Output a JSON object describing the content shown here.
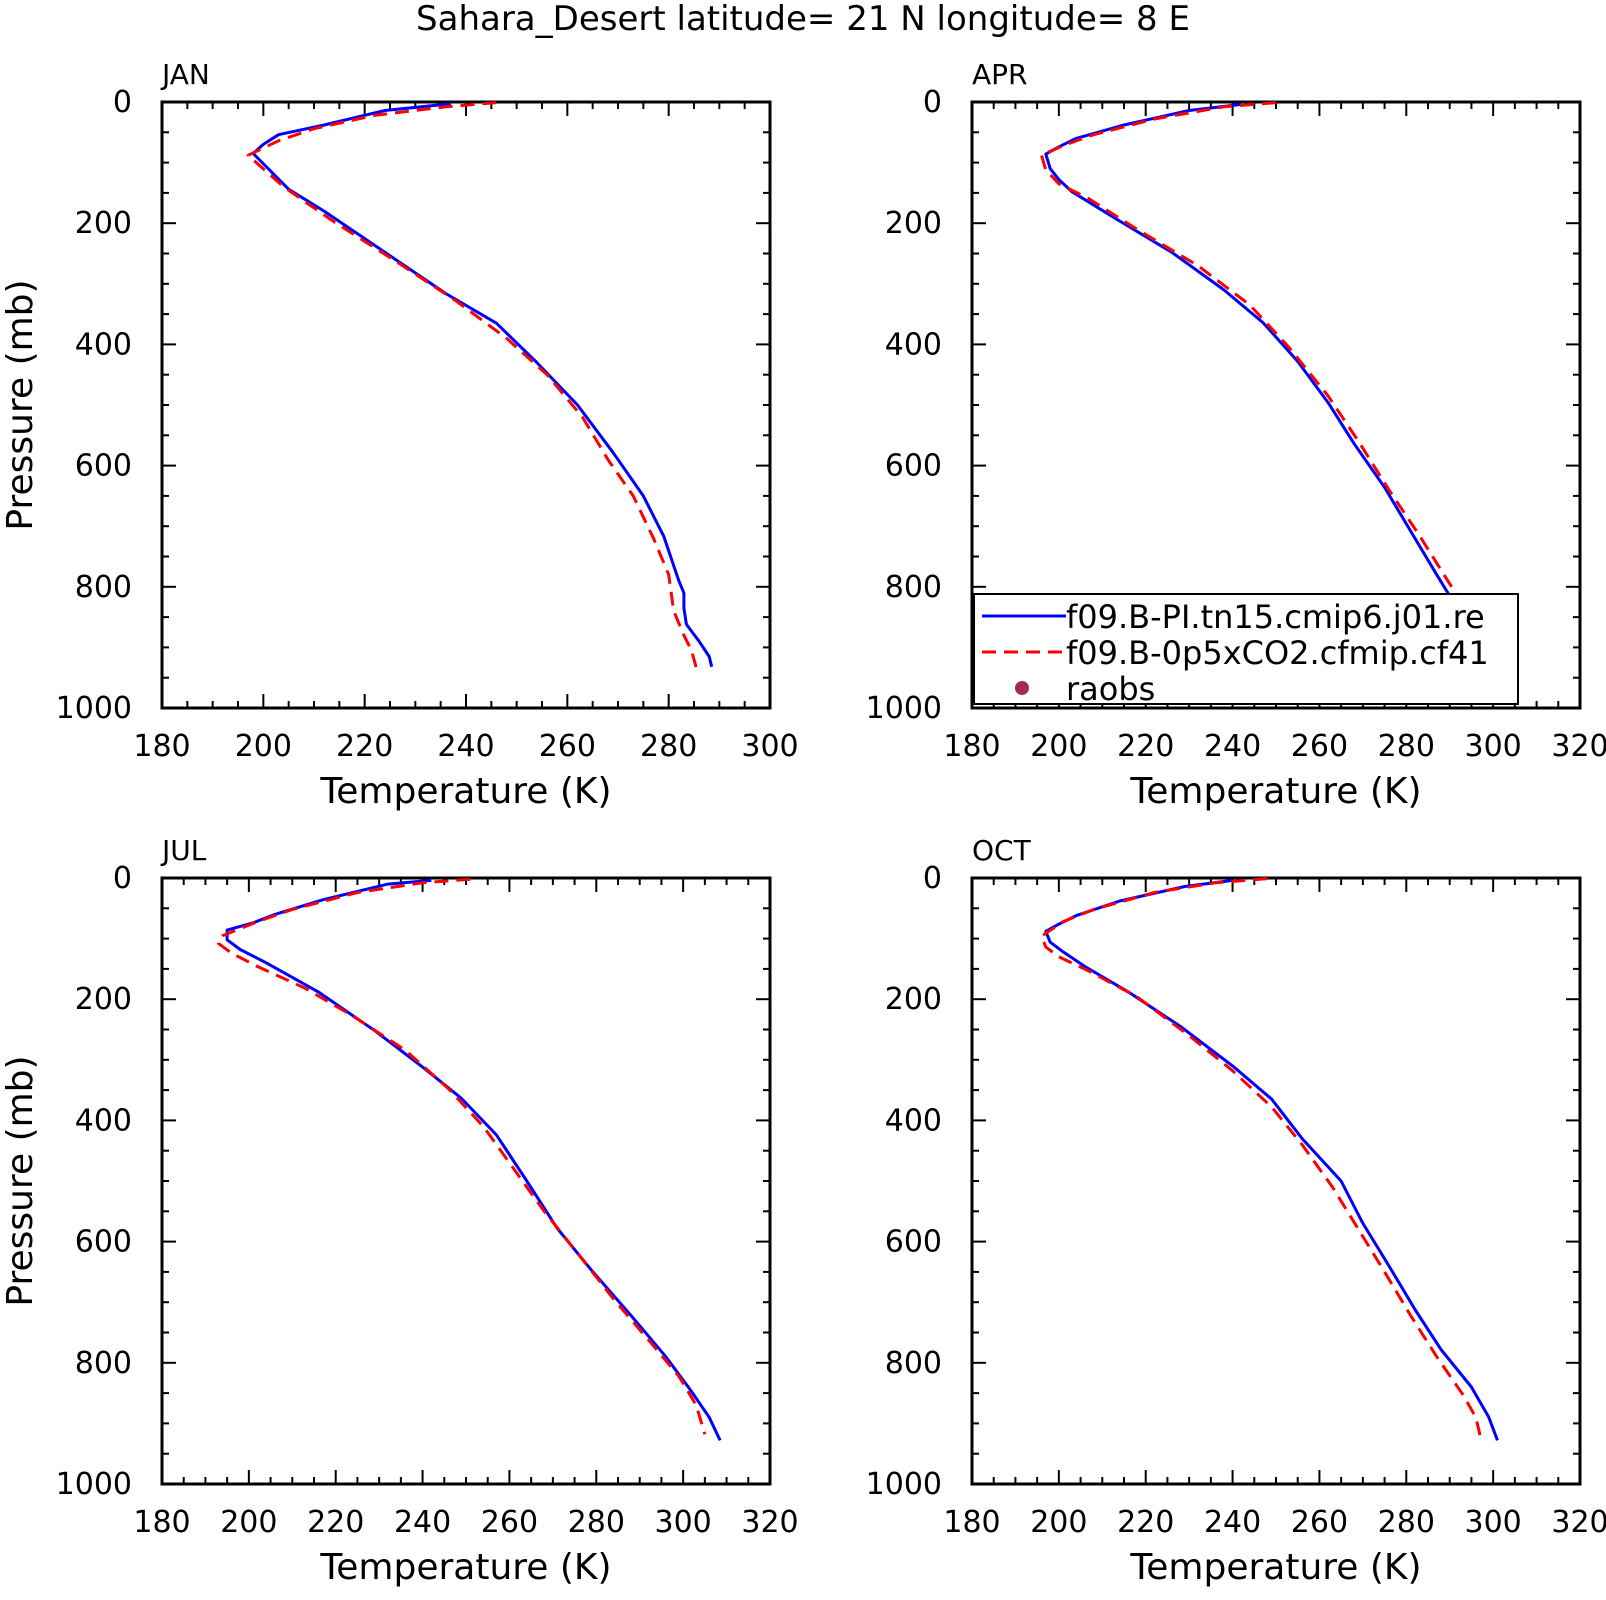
{
  "title": "Sahara_Desert  latitude= 21 N longitude= 8 E",
  "colors": {
    "ctrl": "#0000ff",
    "exp": "#ff0000",
    "raobs": "#a8285e",
    "axis": "#000000"
  },
  "legend": {
    "entries": [
      {
        "label": "f09.B-PI.tn15.cmip6.j01.re",
        "style": "solid",
        "color": "#0000ff"
      },
      {
        "label": "f09.B-0p5xCO2.cfmip.cf41",
        "style": "dashed",
        "color": "#ff0000"
      },
      {
        "label": "raobs",
        "style": "dot",
        "color": "#a8285e"
      }
    ],
    "placement": "inside APR panel, bottom"
  },
  "chart_data": [
    {
      "type": "line",
      "panel_label": "JAN",
      "xlabel": "Temperature (K)",
      "ylabel": "Pressure (mb)",
      "xlim": [
        180,
        300
      ],
      "ylim": [
        1000,
        0
      ],
      "xticks": [
        180,
        200,
        220,
        240,
        260,
        280,
        300
      ],
      "yticks": [
        0,
        200,
        400,
        600,
        800,
        1000
      ],
      "series": [
        {
          "name": "f09.B-PI.tn15.cmip6.j01.re",
          "color": "#0000ff",
          "dash": "solid",
          "points": [
            [
              237,
              3
            ],
            [
              224,
              14
            ],
            [
              212,
              38
            ],
            [
              203,
              54
            ],
            [
              200,
              70
            ],
            [
              198,
              85
            ],
            [
              205,
              144
            ],
            [
              212,
              180
            ],
            [
              224,
              248
            ],
            [
              236,
              316
            ],
            [
              246,
              365
            ],
            [
              254,
              430
            ],
            [
              262,
              500
            ],
            [
              269,
              578
            ],
            [
              275,
              650
            ],
            [
              279,
              716
            ],
            [
              282,
              790
            ],
            [
              283,
              810
            ],
            [
              283,
              835
            ],
            [
              283.5,
              862
            ],
            [
              286,
              890
            ],
            [
              288,
              915
            ],
            [
              288.5,
              932
            ]
          ]
        },
        {
          "name": "f09.B-0p5xCO2.cfmip.cf41",
          "color": "#ff0000",
          "dash": "dashed",
          "points": [
            [
              246,
              1
            ],
            [
              236,
              8
            ],
            [
              222,
              22
            ],
            [
              210,
              44
            ],
            [
              203,
              64
            ],
            [
              197,
              88
            ],
            [
              204,
              140
            ],
            [
              214,
              198
            ],
            [
              226,
              262
            ],
            [
              238,
              328
            ],
            [
              248,
              390
            ],
            [
              256,
              450
            ],
            [
              263,
              520
            ],
            [
              268,
              590
            ],
            [
              273,
              650
            ],
            [
              277,
              720
            ],
            [
              280,
              780
            ],
            [
              280.5,
              810
            ],
            [
              281,
              840
            ],
            [
              283,
              880
            ],
            [
              284.5,
              905
            ],
            [
              285.5,
              935
            ]
          ]
        }
      ]
    },
    {
      "type": "line",
      "panel_label": "APR",
      "xlabel": "Temperature (K)",
      "ylabel": "",
      "xlim": [
        180,
        320
      ],
      "ylim": [
        1000,
        0
      ],
      "xticks": [
        180,
        200,
        220,
        240,
        260,
        280,
        300,
        320
      ],
      "yticks": [
        0,
        200,
        400,
        600,
        800,
        1000
      ],
      "series": [
        {
          "name": "f09.B-PI.tn15.cmip6.j01.re",
          "color": "#0000ff",
          "dash": "solid",
          "points": [
            [
              242,
              4
            ],
            [
              230,
              14
            ],
            [
              215,
              38
            ],
            [
              204,
              60
            ],
            [
              200,
              74
            ],
            [
              197,
              86
            ],
            [
              198,
              110
            ],
            [
              200,
              128
            ],
            [
              203,
              148
            ],
            [
              213,
              192
            ],
            [
              226,
              248
            ],
            [
              238,
              310
            ],
            [
              247,
              364
            ],
            [
              255,
              428
            ],
            [
              262,
              496
            ],
            [
              268,
              564
            ],
            [
              275,
              636
            ],
            [
              281,
              708
            ],
            [
              287,
              780
            ],
            [
              293,
              850
            ],
            [
              299,
              912
            ],
            [
              302,
              930
            ]
          ]
        },
        {
          "name": "f09.B-0p5xCO2.cfmip.cf41",
          "color": "#ff0000",
          "dash": "dashed",
          "points": [
            [
              250,
              1
            ],
            [
              238,
              8
            ],
            [
              222,
              28
            ],
            [
              208,
              54
            ],
            [
              201,
              72
            ],
            [
              196,
              88
            ],
            [
              197,
              112
            ],
            [
              200,
              135
            ],
            [
              207,
              160
            ],
            [
              218,
              210
            ],
            [
              232,
              270
            ],
            [
              244,
              335
            ],
            [
              253,
              405
            ],
            [
              262,
              485
            ],
            [
              269,
              560
            ],
            [
              276,
              640
            ],
            [
              283,
              715
            ],
            [
              290,
              795
            ],
            [
              297,
              870
            ],
            [
              302,
              910
            ]
          ]
        }
      ]
    },
    {
      "type": "line",
      "panel_label": "JUL",
      "xlabel": "Temperature (K)",
      "ylabel": "Pressure (mb)",
      "xlim": [
        180,
        320
      ],
      "ylim": [
        1000,
        0
      ],
      "xticks": [
        180,
        200,
        220,
        240,
        260,
        280,
        300,
        320
      ],
      "yticks": [
        0,
        200,
        400,
        600,
        800,
        1000
      ],
      "series": [
        {
          "name": "f09.B-PI.tn15.cmip6.j01.re",
          "color": "#0000ff",
          "dash": "solid",
          "points": [
            [
              242,
              4
            ],
            [
              232,
              10
            ],
            [
              217,
              36
            ],
            [
              206,
              60
            ],
            [
              201,
              74
            ],
            [
              195,
              86
            ],
            [
              195,
              102
            ],
            [
              198,
              118
            ],
            [
              204,
              140
            ],
            [
              216,
              188
            ],
            [
              229,
              252
            ],
            [
              240,
              312
            ],
            [
              249,
              364
            ],
            [
              257,
              424
            ],
            [
              264,
              500
            ],
            [
              271,
              578
            ],
            [
              279,
              648
            ],
            [
              288,
              722
            ],
            [
              296,
              790
            ],
            [
              302,
              848
            ],
            [
              306,
              890
            ],
            [
              308.5,
              928
            ]
          ]
        },
        {
          "name": "f09.B-0p5xCO2.cfmip.cf41",
          "color": "#ff0000",
          "dash": "dashed",
          "points": [
            [
              251,
              2
            ],
            [
              240,
              8
            ],
            [
              225,
              24
            ],
            [
              210,
              52
            ],
            [
              202,
              72
            ],
            [
              194,
              95
            ],
            [
              193,
              108
            ],
            [
              196,
              124
            ],
            [
              202,
              146
            ],
            [
              213,
              182
            ],
            [
              224,
              228
            ],
            [
              236,
              284
            ],
            [
              246,
              348
            ],
            [
              254,
              410
            ],
            [
              261,
              480
            ],
            [
              268,
              550
            ],
            [
              276,
              622
            ],
            [
              284,
              695
            ],
            [
              292,
              762
            ],
            [
              299,
              822
            ],
            [
              303,
              870
            ],
            [
              305,
              918
            ]
          ]
        }
      ]
    },
    {
      "type": "line",
      "panel_label": "OCT",
      "xlabel": "Temperature (K)",
      "ylabel": "",
      "xlim": [
        180,
        320
      ],
      "ylim": [
        1000,
        0
      ],
      "xticks": [
        180,
        200,
        220,
        240,
        260,
        280,
        300,
        320
      ],
      "yticks": [
        0,
        200,
        400,
        600,
        800,
        1000
      ],
      "series": [
        {
          "name": "f09.B-PI.tn15.cmip6.j01.re",
          "color": "#0000ff",
          "dash": "solid",
          "points": [
            [
              240,
              4
            ],
            [
              229,
              14
            ],
            [
              214,
              38
            ],
            [
              204,
              62
            ],
            [
              200,
              76
            ],
            [
              197,
              88
            ],
            [
              198,
              106
            ],
            [
              201,
              122
            ],
            [
              206,
              146
            ],
            [
              216,
              188
            ],
            [
              228,
              245
            ],
            [
              240,
              310
            ],
            [
              249,
              365
            ],
            [
              256,
              430
            ],
            [
              265,
              500
            ],
            [
              270,
              570
            ],
            [
              276,
              640
            ],
            [
              282,
              712
            ],
            [
              288,
              778
            ],
            [
              295,
              840
            ],
            [
              299,
              890
            ],
            [
              301,
              928
            ]
          ]
        },
        {
          "name": "f09.B-0p5xCO2.cfmip.cf41",
          "color": "#ff0000",
          "dash": "dashed",
          "points": [
            [
              248,
              1
            ],
            [
              236,
              8
            ],
            [
              222,
              24
            ],
            [
              208,
              52
            ],
            [
              201,
              72
            ],
            [
              196,
              96
            ],
            [
              197,
              114
            ],
            [
              200,
              130
            ],
            [
              207,
              154
            ],
            [
              218,
              196
            ],
            [
              230,
              260
            ],
            [
              240,
              318
            ],
            [
              249,
              378
            ],
            [
              256,
              440
            ],
            [
              263,
              510
            ],
            [
              269,
              580
            ],
            [
              275,
              650
            ],
            [
              281,
              722
            ],
            [
              287,
              790
            ],
            [
              293,
              852
            ],
            [
              296,
              890
            ],
            [
              297,
              920
            ]
          ]
        }
      ]
    }
  ]
}
